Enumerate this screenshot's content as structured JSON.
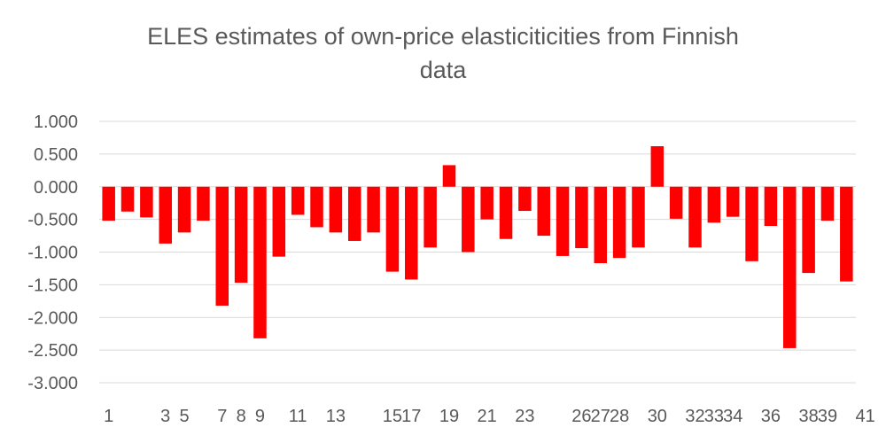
{
  "chart_data": {
    "type": "bar",
    "title_lines": [
      "ELES estimates of own-price elasticiticities from Finnish",
      "data"
    ],
    "xlabel": "",
    "ylabel": "",
    "ylim": [
      -3.0,
      1.0
    ],
    "y_ticks": [
      "1.000",
      "0.500",
      "0.000",
      "-0.500",
      "-1.000",
      "-1.500",
      "-2.000",
      "-2.500",
      "-3.000"
    ],
    "y_tick_values": [
      1.0,
      0.5,
      0.0,
      -0.5,
      -1.0,
      -1.5,
      -2.0,
      -2.5,
      -3.0
    ],
    "x_tick_labels": [
      {
        "index": 0,
        "label": "1"
      },
      {
        "index": 3,
        "label": "3"
      },
      {
        "index": 4,
        "label": "5"
      },
      {
        "index": 6,
        "label": "7"
      },
      {
        "index": 7,
        "label": "8"
      },
      {
        "index": 8,
        "label": "9"
      },
      {
        "index": 10,
        "label": "11"
      },
      {
        "index": 12,
        "label": "13"
      },
      {
        "index": 15,
        "label": "15"
      },
      {
        "index": 16,
        "label": "17"
      },
      {
        "index": 18,
        "label": "19"
      },
      {
        "index": 20,
        "label": "21"
      },
      {
        "index": 22,
        "label": "23"
      },
      {
        "index": 25,
        "label": "26"
      },
      {
        "index": 26,
        "label": "27"
      },
      {
        "index": 27,
        "label": "28"
      },
      {
        "index": 29,
        "label": "30"
      },
      {
        "index": 31,
        "label": "32"
      },
      {
        "index": 32,
        "label": "33"
      },
      {
        "index": 33,
        "label": "34"
      },
      {
        "index": 35,
        "label": "36"
      },
      {
        "index": 37,
        "label": "38"
      },
      {
        "index": 38,
        "label": "39"
      },
      {
        "index": 40,
        "label": "41"
      }
    ],
    "values": [
      -0.52,
      -0.38,
      -0.47,
      -0.87,
      -0.7,
      -0.52,
      -1.82,
      -1.47,
      -2.32,
      -1.07,
      -0.43,
      -0.62,
      -0.7,
      -0.83,
      -0.7,
      -1.3,
      -1.42,
      -0.93,
      0.33,
      -1.0,
      -0.5,
      -0.8,
      -0.37,
      -0.75,
      -1.06,
      -0.94,
      -1.17,
      -1.09,
      -0.93,
      0.62,
      -0.49,
      -0.93,
      -0.55,
      -0.46,
      -1.14,
      -0.6,
      -2.47,
      -1.32,
      -0.52,
      -1.45
    ],
    "bar_color": "#ff0000",
    "grid": true,
    "legend": "none"
  }
}
